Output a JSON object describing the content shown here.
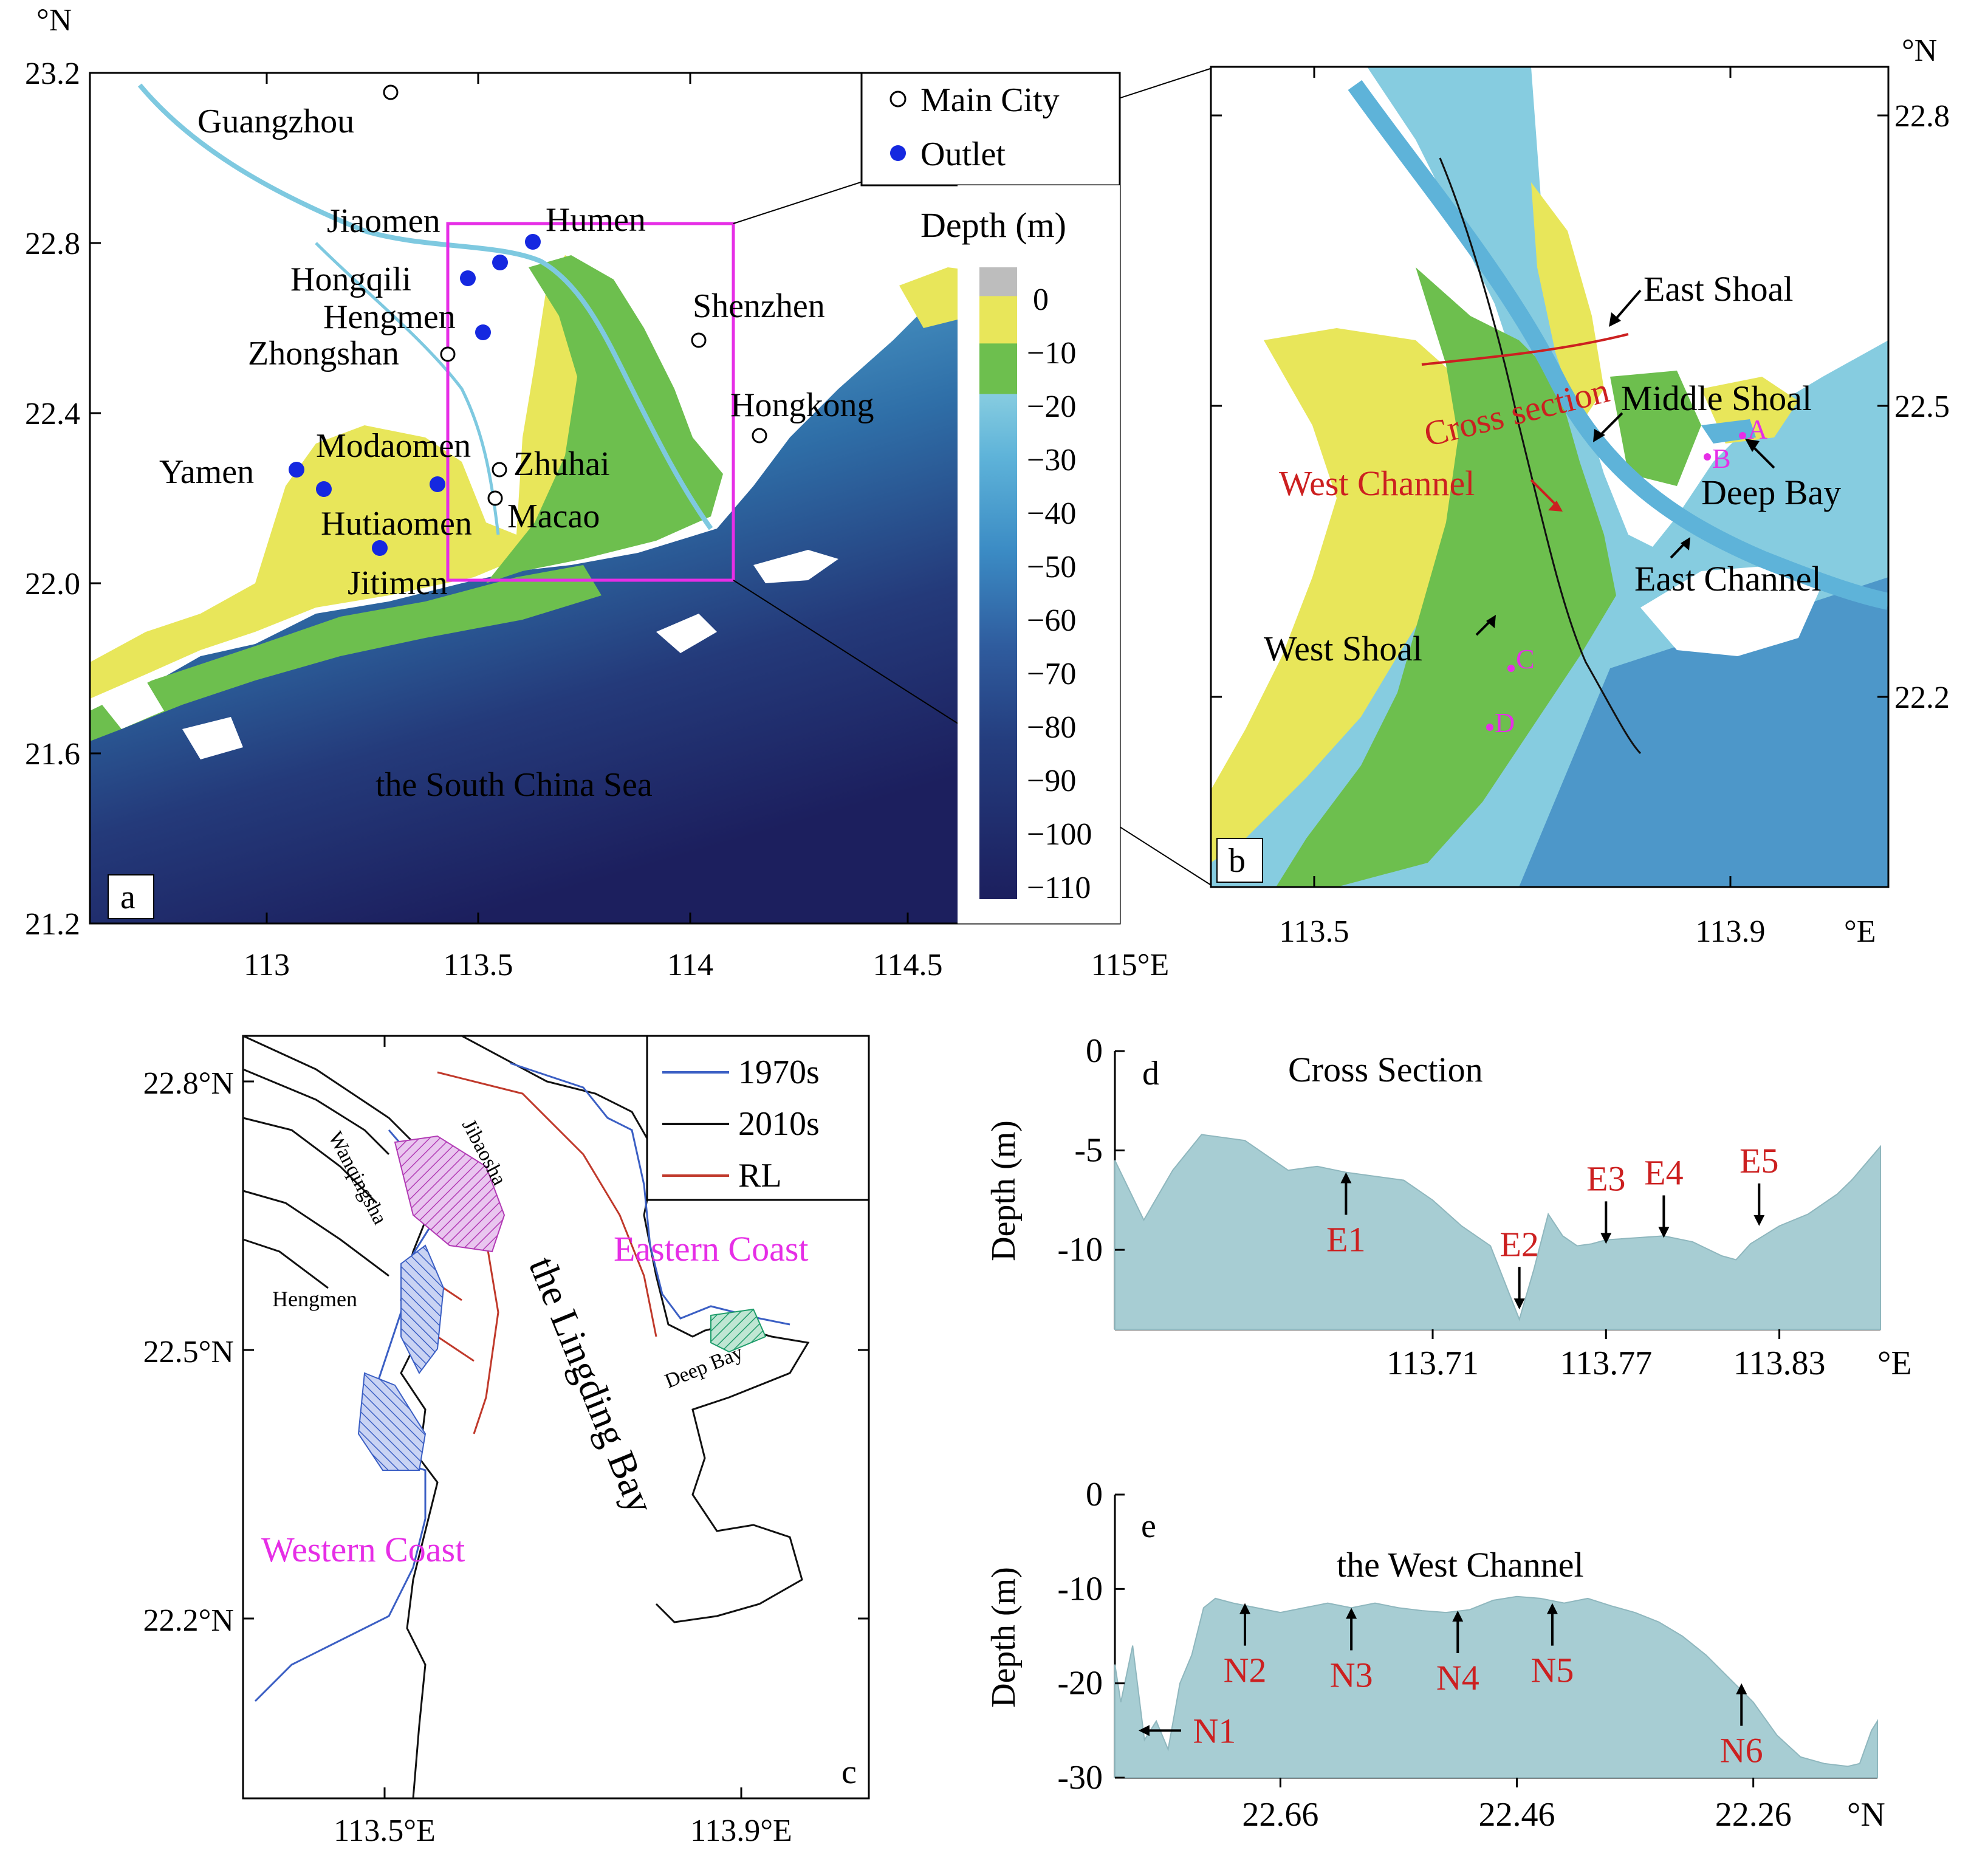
{
  "panel_a": {
    "letter": "a",
    "lat_unit": "°N",
    "lon_unit": "°E",
    "lat_ticks": [
      "23.2",
      "22.8",
      "22.4",
      "22.0",
      "21.6",
      "21.2"
    ],
    "lon_ticks": [
      "113",
      "113.5",
      "114",
      "114.5",
      "115°E"
    ],
    "sea_label": "the South China Sea",
    "legend": {
      "main_city": "Main City",
      "outlet": "Outlet"
    },
    "depth_title": "Depth (m)",
    "depth_ticks": [
      "0",
      "−10",
      "−20",
      "−30",
      "−40",
      "−50",
      "−60",
      "−70",
      "−80",
      "−90",
      "−100",
      "−110"
    ],
    "cities": [
      "Guangzhou",
      "Shenzhen",
      "Zhongshan",
      "Hongkong",
      "Zhuhai",
      "Macao"
    ],
    "outlets": [
      "Humen",
      "Jiaomen",
      "Hongqili",
      "Hengmen",
      "Modaomen",
      "Yamen",
      "Hutiaomen",
      "Jitimen"
    ]
  },
  "panel_b": {
    "letter": "b",
    "lat_unit": "°N",
    "lon_unit": "°E",
    "lat_ticks": [
      "22.8",
      "22.5",
      "22.2"
    ],
    "lon_ticks": [
      "113.5",
      "113.9"
    ],
    "labels": {
      "east_shoal": "East Shoal",
      "middle_shoal": "Middle Shoal",
      "deep_bay": "Deep Bay",
      "east_channel": "East Channel",
      "west_shoal": "West Shoal",
      "west_channel": "West Channel",
      "cross_section": "Cross section"
    },
    "points": [
      "A",
      "B",
      "C",
      "D"
    ]
  },
  "panel_c": {
    "letter": "c",
    "lat_ticks": [
      "22.8°N",
      "22.5°N",
      "22.2°N"
    ],
    "lon_ticks": [
      "113.5°E",
      "113.9°E"
    ],
    "legend": [
      "1970s",
      "2010s",
      "RL"
    ],
    "labels": {
      "eastern_coast": "Eastern Coast",
      "western_coast": "Western Coast",
      "bay": "the Lingding Bay",
      "wanqingsha": "Wanqingsha",
      "jibaosha": "Jibaosha",
      "hengmen": "Hengmen",
      "deep_bay": "Deep Bay"
    },
    "colors": {
      "1970s": "#3b5fc4",
      "2010s": "#111111",
      "RL": "#c0392b"
    }
  },
  "panel_d": {
    "letter": "d",
    "title": "Cross Section",
    "ylabel": "Depth (m)",
    "y_ticks": [
      "0",
      "-5",
      "-10"
    ],
    "x_ticks": [
      "113.71",
      "113.77",
      "113.83"
    ],
    "x_unit": "°E",
    "markers": [
      "E1",
      "E2",
      "E3",
      "E4",
      "E5"
    ]
  },
  "panel_e": {
    "letter": "e",
    "title": "the West Channel",
    "ylabel": "Depth (m)",
    "y_ticks": [
      "0",
      "-10",
      "-20",
      "-30"
    ],
    "x_ticks": [
      "22.66",
      "22.46",
      "22.26"
    ],
    "x_unit": "°N",
    "markers": [
      "N1",
      "N2",
      "N3",
      "N4",
      "N5",
      "N6"
    ]
  },
  "chart_data": [
    {
      "type": "area",
      "title": "Cross Section",
      "xlabel": "",
      "ylabel": "Depth (m)",
      "xlim": [
        113.6,
        113.865
      ],
      "ylim": [
        -14,
        0
      ],
      "x": [
        113.6,
        113.61,
        113.62,
        113.63,
        113.645,
        113.66,
        113.67,
        113.68,
        113.69,
        113.7,
        113.71,
        113.72,
        113.73,
        113.74,
        113.745,
        113.75,
        113.755,
        113.76,
        113.765,
        113.77,
        113.78,
        113.79,
        113.8,
        113.81,
        113.815,
        113.82,
        113.83,
        113.84,
        113.85,
        113.855,
        113.865
      ],
      "values": [
        -5.5,
        -8.5,
        -6.0,
        -4.2,
        -4.5,
        -6.0,
        -5.8,
        -6.1,
        -6.3,
        -6.5,
        -7.5,
        -8.8,
        -9.8,
        -13.5,
        -11.0,
        -8.2,
        -9.3,
        -9.8,
        -9.7,
        -9.5,
        -9.4,
        -9.3,
        -9.6,
        -10.3,
        -10.5,
        -9.7,
        -8.8,
        -8.2,
        -7.2,
        -6.5,
        -4.8
      ],
      "annotations": [
        {
          "label": "E1",
          "x": 113.68,
          "y": -6.1
        },
        {
          "label": "E2",
          "x": 113.74,
          "y": -13.0
        },
        {
          "label": "E3",
          "x": 113.77,
          "y": -9.7
        },
        {
          "label": "E4",
          "x": 113.79,
          "y": -9.4
        },
        {
          "label": "E5",
          "x": 113.823,
          "y": -8.8
        }
      ]
    },
    {
      "type": "area",
      "title": "the West Channel",
      "xlabel": "",
      "ylabel": "Depth (m)",
      "xlim": [
        22.8,
        22.155
      ],
      "ylim": [
        -30,
        0
      ],
      "x": [
        22.8,
        22.795,
        22.785,
        22.775,
        22.765,
        22.755,
        22.745,
        22.735,
        22.725,
        22.715,
        22.7,
        22.68,
        22.66,
        22.64,
        22.62,
        22.6,
        22.58,
        22.56,
        22.54,
        22.52,
        22.5,
        22.48,
        22.46,
        22.44,
        22.42,
        22.4,
        22.38,
        22.36,
        22.34,
        22.32,
        22.3,
        22.28,
        22.26,
        22.24,
        22.22,
        22.2,
        22.18,
        22.17,
        22.16,
        22.155
      ],
      "values": [
        -18,
        -22,
        -16,
        -26,
        -24,
        -27,
        -20,
        -17,
        -12,
        -11,
        -11.5,
        -12,
        -12.5,
        -12,
        -11.5,
        -12,
        -11.5,
        -12,
        -12.3,
        -12.5,
        -12.2,
        -11.2,
        -10.8,
        -11,
        -11.5,
        -11,
        -11.8,
        -12.5,
        -13.5,
        -15,
        -17,
        -19.5,
        -22,
        -25.5,
        -27.8,
        -28.5,
        -28.8,
        -28.5,
        -25,
        -24
      ],
      "annotations": [
        {
          "label": "N1",
          "x": 22.78,
          "y": -25
        },
        {
          "label": "N2",
          "x": 22.69,
          "y": -11.5
        },
        {
          "label": "N3",
          "x": 22.6,
          "y": -12
        },
        {
          "label": "N4",
          "x": 22.51,
          "y": -12.3
        },
        {
          "label": "N5",
          "x": 22.43,
          "y": -11.5
        },
        {
          "label": "N6",
          "x": 22.27,
          "y": -20
        }
      ]
    }
  ]
}
